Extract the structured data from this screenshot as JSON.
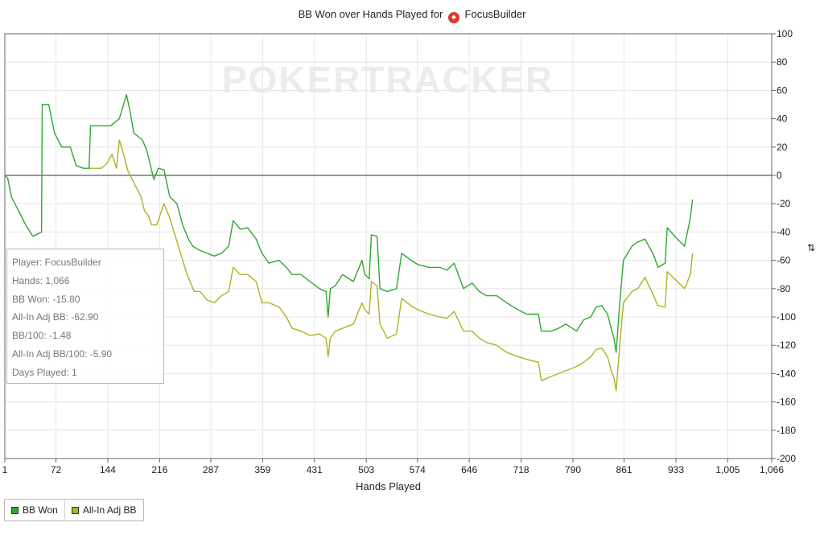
{
  "chart_data": {
    "type": "line",
    "title_prefix": "BB Won over Hands Played for",
    "title_player": "FocusBuilder",
    "title_icon": "pokerstars-spade-icon",
    "watermark": "POKERTRACKER",
    "xlabel": "Hands Played",
    "ylabel": "",
    "y_unit_symbol": "⇅",
    "xlim": [
      1,
      1066
    ],
    "ylim": [
      -200,
      100
    ],
    "x_ticks": [
      1,
      72,
      144,
      216,
      287,
      359,
      431,
      503,
      574,
      646,
      718,
      790,
      861,
      933,
      1005,
      1066
    ],
    "x_tick_labels": [
      "1",
      "72",
      "144",
      "216",
      "287",
      "359",
      "431",
      "503",
      "574",
      "646",
      "718",
      "790",
      "861",
      "933",
      "1,005",
      "1,066"
    ],
    "y_ticks": [
      100,
      80,
      60,
      40,
      20,
      0,
      -20,
      -40,
      -60,
      -80,
      -100,
      -120,
      -140,
      -160,
      -180,
      -200
    ],
    "y_tick_labels": [
      "100",
      "80",
      "60",
      "40",
      "20",
      "0",
      "-20",
      "-40",
      "-60",
      "-80",
      "-100",
      "-120",
      "-140",
      "-160",
      "-180",
      "-200"
    ],
    "grid": true,
    "legend_position": "bottom-left",
    "series": [
      {
        "name": "BB Won",
        "color": "#2ea82e",
        "points": [
          [
            1,
            0
          ],
          [
            5,
            -2
          ],
          [
            10,
            -15
          ],
          [
            20,
            -25
          ],
          [
            30,
            -35
          ],
          [
            40,
            -43
          ],
          [
            52,
            -40
          ],
          [
            53,
            50
          ],
          [
            62,
            50
          ],
          [
            70,
            30
          ],
          [
            80,
            20
          ],
          [
            92,
            20
          ],
          [
            100,
            7
          ],
          [
            110,
            5
          ],
          [
            118,
            5
          ],
          [
            120,
            35
          ],
          [
            135,
            35
          ],
          [
            148,
            35
          ],
          [
            160,
            40
          ],
          [
            170,
            57
          ],
          [
            175,
            45
          ],
          [
            180,
            30
          ],
          [
            192,
            25
          ],
          [
            198,
            18
          ],
          [
            208,
            -3
          ],
          [
            214,
            5
          ],
          [
            222,
            4
          ],
          [
            230,
            -15
          ],
          [
            240,
            -20
          ],
          [
            248,
            -35
          ],
          [
            256,
            -45
          ],
          [
            262,
            -50
          ],
          [
            272,
            -53
          ],
          [
            282,
            -55
          ],
          [
            292,
            -57
          ],
          [
            302,
            -55
          ],
          [
            312,
            -50
          ],
          [
            318,
            -32
          ],
          [
            328,
            -38
          ],
          [
            338,
            -37
          ],
          [
            350,
            -45
          ],
          [
            358,
            -55
          ],
          [
            368,
            -62
          ],
          [
            382,
            -60
          ],
          [
            392,
            -65
          ],
          [
            400,
            -70
          ],
          [
            412,
            -70
          ],
          [
            425,
            -75
          ],
          [
            438,
            -80
          ],
          [
            447,
            -82
          ],
          [
            450,
            -100
          ],
          [
            453,
            -80
          ],
          [
            460,
            -78
          ],
          [
            470,
            -70
          ],
          [
            485,
            -75
          ],
          [
            497,
            -60
          ],
          [
            501,
            -70
          ],
          [
            507,
            -73
          ],
          [
            510,
            -42
          ],
          [
            518,
            -43
          ],
          [
            522,
            -80
          ],
          [
            532,
            -82
          ],
          [
            545,
            -80
          ],
          [
            552,
            -55
          ],
          [
            565,
            -60
          ],
          [
            575,
            -63
          ],
          [
            590,
            -65
          ],
          [
            605,
            -65
          ],
          [
            615,
            -67
          ],
          [
            625,
            -62
          ],
          [
            638,
            -80
          ],
          [
            650,
            -76
          ],
          [
            660,
            -82
          ],
          [
            670,
            -85
          ],
          [
            684,
            -85
          ],
          [
            698,
            -90
          ],
          [
            714,
            -95
          ],
          [
            726,
            -98
          ],
          [
            742,
            -98
          ],
          [
            746,
            -110
          ],
          [
            760,
            -110
          ],
          [
            770,
            -108
          ],
          [
            780,
            -105
          ],
          [
            795,
            -110
          ],
          [
            805,
            -102
          ],
          [
            815,
            -100
          ],
          [
            822,
            -93
          ],
          [
            830,
            -92
          ],
          [
            838,
            -98
          ],
          [
            843,
            -108
          ],
          [
            847,
            -115
          ],
          [
            850,
            -125
          ],
          [
            855,
            -90
          ],
          [
            860,
            -60
          ],
          [
            872,
            -50
          ],
          [
            880,
            -47
          ],
          [
            890,
            -45
          ],
          [
            902,
            -56
          ],
          [
            908,
            -65
          ],
          [
            918,
            -62
          ],
          [
            921,
            -37
          ],
          [
            935,
            -45
          ],
          [
            945,
            -50
          ],
          [
            953,
            -30
          ],
          [
            956,
            -17
          ]
        ]
      },
      {
        "name": "All-In Adj BB",
        "color": "#b0b026",
        "points": [
          [
            118,
            5
          ],
          [
            130,
            5
          ],
          [
            135,
            5
          ],
          [
            142,
            8
          ],
          [
            150,
            15
          ],
          [
            156,
            5
          ],
          [
            160,
            25
          ],
          [
            166,
            15
          ],
          [
            172,
            3
          ],
          [
            180,
            -5
          ],
          [
            190,
            -15
          ],
          [
            195,
            -25
          ],
          [
            200,
            -28
          ],
          [
            205,
            -35
          ],
          [
            212,
            -35
          ],
          [
            222,
            -20
          ],
          [
            230,
            -30
          ],
          [
            242,
            -50
          ],
          [
            254,
            -70
          ],
          [
            264,
            -82
          ],
          [
            272,
            -82
          ],
          [
            282,
            -88
          ],
          [
            292,
            -90
          ],
          [
            302,
            -85
          ],
          [
            312,
            -82
          ],
          [
            318,
            -65
          ],
          [
            328,
            -70
          ],
          [
            338,
            -70
          ],
          [
            350,
            -75
          ],
          [
            358,
            -90
          ],
          [
            368,
            -90
          ],
          [
            382,
            -93
          ],
          [
            392,
            -100
          ],
          [
            400,
            -108
          ],
          [
            412,
            -110
          ],
          [
            425,
            -113
          ],
          [
            438,
            -112
          ],
          [
            447,
            -115
          ],
          [
            450,
            -128
          ],
          [
            453,
            -115
          ],
          [
            460,
            -110
          ],
          [
            470,
            -108
          ],
          [
            485,
            -105
          ],
          [
            497,
            -90
          ],
          [
            501,
            -95
          ],
          [
            507,
            -98
          ],
          [
            510,
            -75
          ],
          [
            518,
            -78
          ],
          [
            522,
            -105
          ],
          [
            532,
            -115
          ],
          [
            545,
            -112
          ],
          [
            552,
            -87
          ],
          [
            565,
            -92
          ],
          [
            575,
            -95
          ],
          [
            590,
            -98
          ],
          [
            605,
            -100
          ],
          [
            615,
            -101
          ],
          [
            625,
            -96
          ],
          [
            638,
            -110
          ],
          [
            650,
            -110
          ],
          [
            660,
            -115
          ],
          [
            670,
            -118
          ],
          [
            684,
            -120
          ],
          [
            698,
            -125
          ],
          [
            714,
            -128
          ],
          [
            726,
            -130
          ],
          [
            742,
            -132
          ],
          [
            746,
            -145
          ],
          [
            760,
            -142
          ],
          [
            770,
            -140
          ],
          [
            780,
            -138
          ],
          [
            795,
            -135
          ],
          [
            805,
            -132
          ],
          [
            815,
            -128
          ],
          [
            822,
            -123
          ],
          [
            830,
            -122
          ],
          [
            838,
            -128
          ],
          [
            843,
            -138
          ],
          [
            847,
            -143
          ],
          [
            850,
            -152
          ],
          [
            855,
            -120
          ],
          [
            860,
            -90
          ],
          [
            872,
            -82
          ],
          [
            880,
            -80
          ],
          [
            890,
            -72
          ],
          [
            902,
            -85
          ],
          [
            908,
            -92
          ],
          [
            918,
            -93
          ],
          [
            921,
            -68
          ],
          [
            935,
            -75
          ],
          [
            945,
            -80
          ],
          [
            953,
            -70
          ],
          [
            956,
            -55
          ]
        ]
      }
    ]
  },
  "info_box": {
    "player": "Player: FocusBuilder",
    "hands": "Hands: 1,066",
    "bb_won": "BB Won: -15.80",
    "all_in_adj_bb": "All-In Adj BB: -62.90",
    "bb_100": "BB/100: -1.48",
    "all_in_adj_bb_100": "All-In Adj BB/100: -5.90",
    "days_played": "Days Played: 1"
  },
  "legend": {
    "items": [
      {
        "label": "BB Won",
        "color": "#2ea82e"
      },
      {
        "label": "All-In Adj BB",
        "color": "#b0b026"
      }
    ]
  }
}
